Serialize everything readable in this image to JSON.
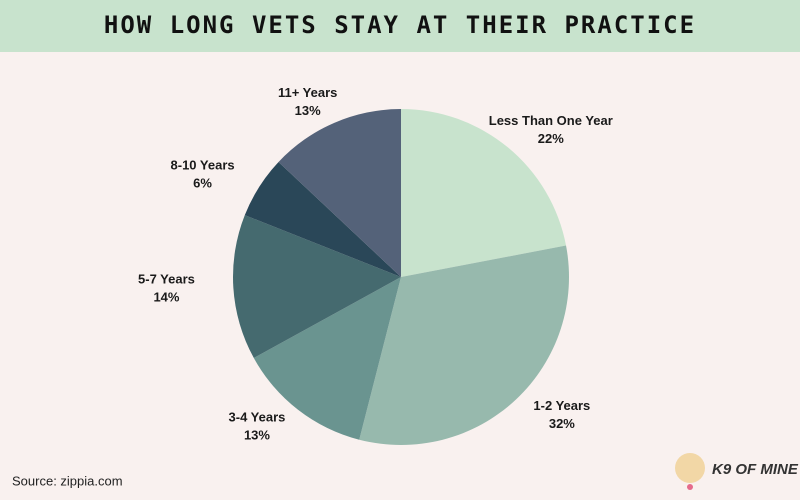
{
  "chart_data": {
    "type": "pie",
    "title": "HOW LONG VETS STAY AT THEIR PRACTICE",
    "categories": [
      "Less Than One Year",
      "1-2 Years",
      "3-4 Years",
      "5-7 Years",
      "8-10 Years",
      "11+ Years"
    ],
    "values": [
      22,
      32,
      13,
      14,
      6,
      13
    ],
    "value_labels": [
      "22%",
      "32%",
      "13%",
      "14%",
      "6%",
      "13%"
    ],
    "colors": [
      "#c8e3cd",
      "#97b9ad",
      "#6a9490",
      "#456a6f",
      "#2a4758",
      "#546279"
    ],
    "source": "Source: zippia.com",
    "logo_text": "K9 OF MINE"
  }
}
